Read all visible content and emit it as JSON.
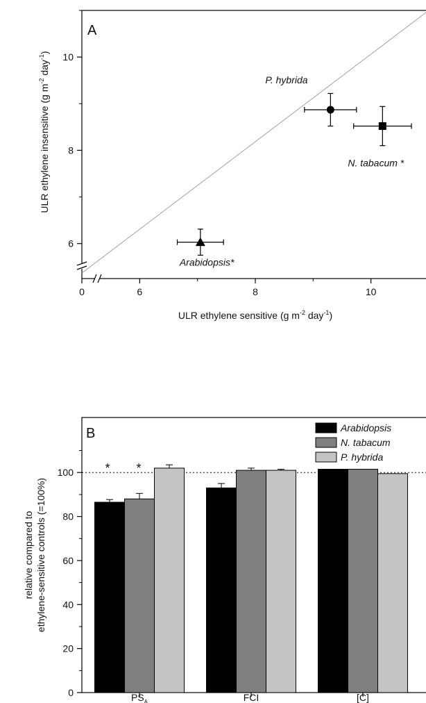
{
  "chart_data": [
    {
      "type": "scatter",
      "panel_label": "A",
      "xlabel": "ULR ethylene sensitive (g m⁻² day⁻¹)",
      "ylabel": "ULR ethylene insensitive (g m⁻² day⁻¹)",
      "xlim": [
        5,
        11
      ],
      "ylim": [
        5.25,
        11
      ],
      "x_ticks": [
        "0",
        "6",
        "8",
        "10"
      ],
      "y_ticks": [
        "6",
        "8",
        "10"
      ],
      "axis_break": true,
      "reference_line": "1:1",
      "points": [
        {
          "label": "P. hybrida",
          "x": 9.3,
          "y": 8.87,
          "xerr": 0.45,
          "yerr": 0.35,
          "marker": "circle"
        },
        {
          "label": "N. tabacum *",
          "x": 10.2,
          "y": 8.52,
          "xerr": 0.5,
          "yerr": 0.42,
          "marker": "square"
        },
        {
          "label": "Arabidopsis*",
          "x": 7.05,
          "y": 6.03,
          "xerr": 0.4,
          "yerr": 0.28,
          "marker": "triangle"
        }
      ]
    },
    {
      "type": "bar",
      "panel_label": "B",
      "ylabel_lines": [
        "relative compared to",
        "ethylene-sensitive controls (=100%)"
      ],
      "categories": [
        "PS",
        "FCI",
        "[C]"
      ],
      "category_subscripts": [
        "A",
        "",
        ""
      ],
      "ylim": [
        0,
        125
      ],
      "y_ticks": [
        "0",
        "20",
        "40",
        "60",
        "80",
        "100"
      ],
      "reference_value": 100,
      "legend_position": "top-right",
      "series": [
        {
          "name": "Arabidopsis",
          "color": "#000000",
          "values": [
            86.5,
            93,
            101.5
          ],
          "errors": [
            1.2,
            2,
            0
          ]
        },
        {
          "name": "N. tabacum",
          "color": "#7f7f7f",
          "values": [
            88,
            101,
            101.5
          ],
          "errors": [
            2.5,
            1,
            0
          ]
        },
        {
          "name": "P. hybrida",
          "color": "#c4c4c4",
          "values": [
            102,
            101,
            99.5
          ],
          "errors": [
            1.5,
            0.5,
            0
          ]
        }
      ],
      "significance": [
        "*",
        "*"
      ]
    }
  ]
}
